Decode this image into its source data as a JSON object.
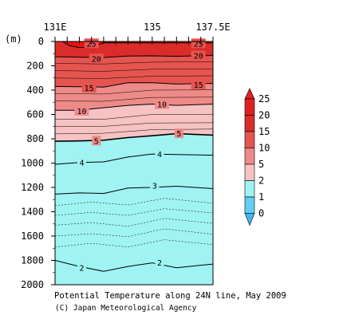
{
  "chart_data": {
    "type": "heatmap",
    "title": "Potential Temperature along 24N line, May 2009",
    "credit": "(C) Japan Meteorological Agency",
    "x_axis": {
      "position": "top",
      "ticks": [
        {
          "value": 131,
          "label": "131E"
        },
        {
          "value": 135,
          "label": "135"
        },
        {
          "value": 137.5,
          "label": "137.5E"
        }
      ],
      "range": [
        131,
        137.5
      ]
    },
    "y_axis": {
      "label": "(m)",
      "inverted": true,
      "range": [
        0,
        2000
      ],
      "ticks": [
        0,
        200,
        400,
        600,
        800,
        1000,
        1200,
        1400,
        1600,
        1800,
        2000
      ]
    },
    "color_scale": {
      "levels": [
        0,
        1,
        2,
        5,
        10,
        15,
        20,
        25
      ],
      "labels": [
        "0",
        "1",
        "2",
        "5",
        "10",
        "15",
        "20",
        "25"
      ],
      "colors": [
        "#3fb8ee",
        "#63cdf2",
        "#9ff3f2",
        "#f6c2c2",
        "#ee8a88",
        "#e65450",
        "#da2c2a",
        "#e02020"
      ]
    },
    "contour_labels": [
      {
        "text": "25",
        "x": 132.5,
        "depth": 15
      },
      {
        "text": "25",
        "x": 136.9,
        "depth": 15
      },
      {
        "text": "20",
        "x": 132.7,
        "depth": 140
      },
      {
        "text": "20",
        "x": 136.9,
        "depth": 115
      },
      {
        "text": "15",
        "x": 132.4,
        "depth": 380
      },
      {
        "text": "15",
        "x": 136.9,
        "depth": 355
      },
      {
        "text": "10",
        "x": 132.1,
        "depth": 570
      },
      {
        "text": "10",
        "x": 135.4,
        "depth": 515
      },
      {
        "text": "5",
        "x": 132.7,
        "depth": 815
      },
      {
        "text": "5",
        "x": 136.1,
        "depth": 755
      },
      {
        "text": "4",
        "x": 132.1,
        "depth": 995
      },
      {
        "text": "4",
        "x": 135.3,
        "depth": 925
      },
      {
        "text": "3",
        "x": 135.1,
        "depth": 1185
      },
      {
        "text": "2",
        "x": 132.1,
        "depth": 1860
      },
      {
        "text": "2",
        "x": 135.3,
        "depth": 1815
      }
    ],
    "contours": [
      {
        "value": 25,
        "style": "solid",
        "points": [
          [
            131.3,
            0
          ],
          [
            131.6,
            35
          ],
          [
            132.0,
            50
          ],
          [
            132.5,
            48
          ],
          [
            133,
            10
          ],
          [
            137.5,
            12
          ]
        ]
      },
      {
        "value": 20,
        "style": "solid",
        "points": [
          [
            131,
            125
          ],
          [
            132,
            130
          ],
          [
            133,
            132
          ],
          [
            134,
            120
          ],
          [
            135,
            118
          ],
          [
            136,
            122
          ],
          [
            137.5,
            115
          ]
        ]
      },
      {
        "value": 15,
        "style": "solid",
        "points": [
          [
            131,
            370
          ],
          [
            132,
            372
          ],
          [
            133,
            375
          ],
          [
            134,
            340
          ],
          [
            135,
            340
          ],
          [
            136,
            350
          ],
          [
            137.5,
            345
          ]
        ]
      },
      {
        "value": 10,
        "style": "solid",
        "points": [
          [
            131,
            565
          ],
          [
            132,
            566
          ],
          [
            133,
            545
          ],
          [
            134,
            525
          ],
          [
            135,
            515
          ],
          [
            136,
            525
          ],
          [
            137.5,
            515
          ]
        ]
      },
      {
        "value": 5,
        "style": "solid",
        "points": [
          [
            131,
            820
          ],
          [
            132,
            818
          ],
          [
            133,
            812
          ],
          [
            134,
            790
          ],
          [
            135,
            775
          ],
          [
            136,
            758
          ],
          [
            137.5,
            770
          ]
        ]
      },
      {
        "value": 4,
        "style": "solid",
        "points": [
          [
            131,
            1010
          ],
          [
            132,
            995
          ],
          [
            133,
            990
          ],
          [
            134,
            950
          ],
          [
            135,
            925
          ],
          [
            136,
            930
          ],
          [
            137.5,
            935
          ]
        ]
      },
      {
        "value": 3,
        "style": "solid",
        "points": [
          [
            131,
            1255
          ],
          [
            132,
            1245
          ],
          [
            133,
            1250
          ],
          [
            134,
            1205
          ],
          [
            135,
            1200
          ],
          [
            136,
            1190
          ],
          [
            137.5,
            1210
          ]
        ]
      },
      {
        "value": 2,
        "style": "solid",
        "points": [
          [
            131,
            1800
          ],
          [
            132,
            1850
          ],
          [
            133,
            1890
          ],
          [
            134,
            1850
          ],
          [
            135,
            1820
          ],
          [
            136,
            1860
          ],
          [
            137.5,
            1830
          ]
        ]
      }
    ]
  }
}
